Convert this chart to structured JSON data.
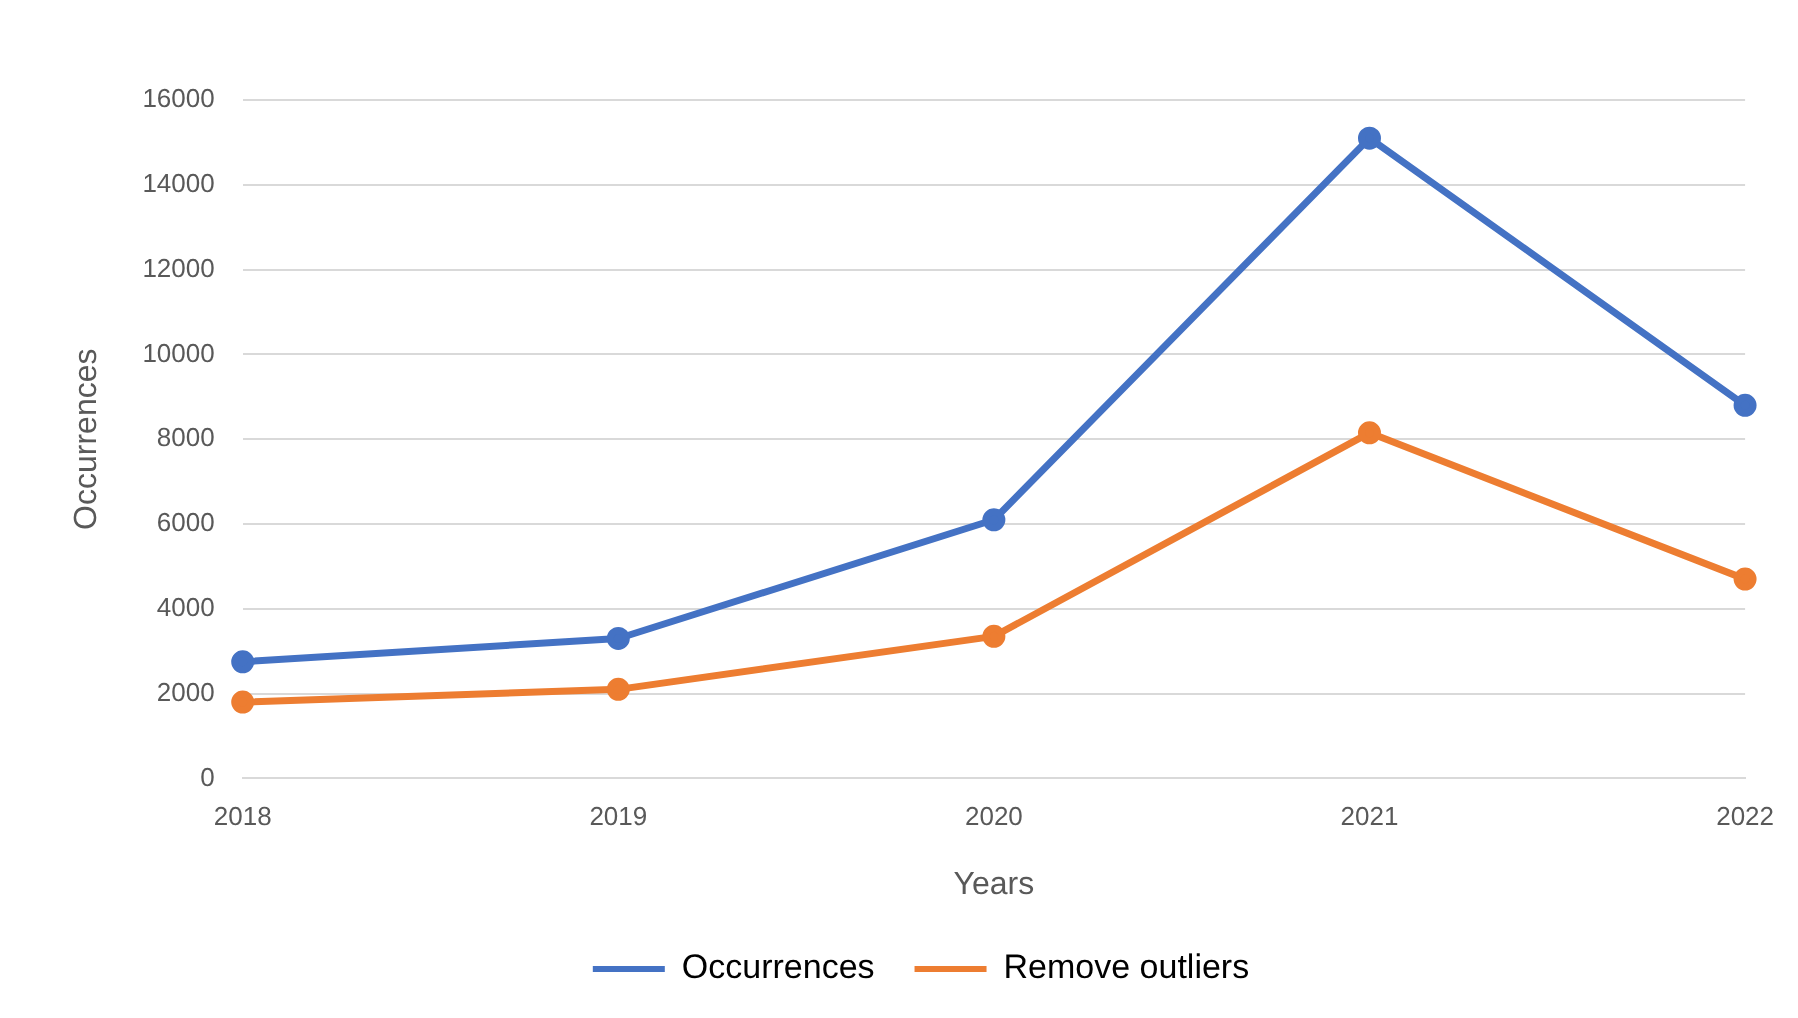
{
  "chart_data": {
    "type": "line",
    "xlabel": "Years",
    "ylabel": "Occurrences",
    "categories": [
      "2018",
      "2019",
      "2020",
      "2021",
      "2022"
    ],
    "series": [
      {
        "name": "Occurrences",
        "color": "#4472c4",
        "values": [
          2750,
          3300,
          6100,
          15100,
          8800
        ]
      },
      {
        "name": "Remove outliers",
        "color": "#ed7d31",
        "values": [
          1800,
          2100,
          3350,
          8150,
          4700
        ]
      }
    ],
    "ylim": [
      0,
      16000
    ],
    "yticks": [
      0,
      2000,
      4000,
      6000,
      8000,
      10000,
      12000,
      14000,
      16000
    ],
    "grid": "y",
    "legend": "bottom",
    "marker": "circle",
    "line_style": "solid"
  }
}
